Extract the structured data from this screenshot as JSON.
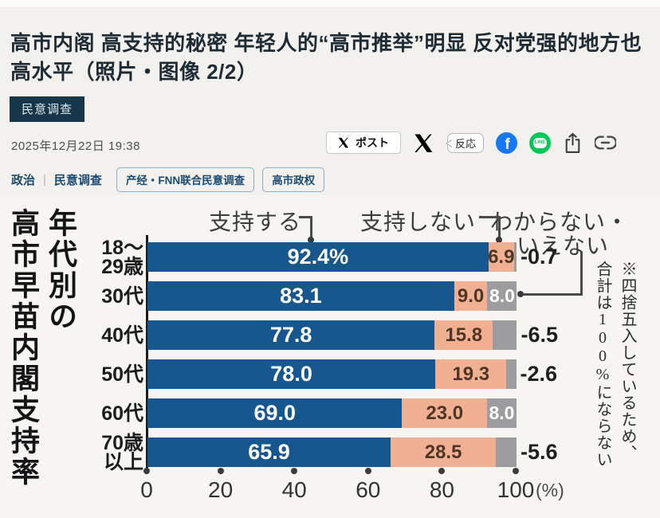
{
  "header": {
    "title_line1": "高市内阁 高支持的秘密 年轻人的“高市推举”明显 反对党强的地方也",
    "title_line2": "高水平（照片・图像 2/2）",
    "category_badge": "民意调查",
    "date": "2025年12月22日 19:38"
  },
  "social": {
    "post_label": "ポスト",
    "reaction_label": "反応",
    "facebook_letter": "f",
    "line_text": "LINE"
  },
  "tags": {
    "links": [
      "政治",
      "民意调查"
    ],
    "separator": "|",
    "chips": [
      "产经・FNN联合民意调查",
      "高市政权"
    ]
  },
  "chart_data": {
    "type": "bar",
    "orientation": "horizontal-stacked",
    "title": "年代別の高市早苗内閣支持率",
    "title_display": "年代別の\n高市早苗内閣支持率",
    "legend": [
      "支持する",
      "支持しない",
      "わからない・いえない"
    ],
    "legend_display": [
      "支持する",
      "支持しない",
      "わからない・",
      "いえない"
    ],
    "categories": [
      "18〜29歳",
      "30代",
      "40代",
      "50代",
      "60代",
      "70歳以上"
    ],
    "category_display": [
      "18〜\n29歳",
      "30代",
      "40代",
      "50代",
      "60代",
      "70歳\n以上"
    ],
    "series": [
      {
        "name": "支持する",
        "color": "#15578e",
        "values": [
          92.4,
          83.1,
          77.8,
          78.0,
          69.0,
          65.9
        ]
      },
      {
        "name": "支持しない",
        "color": "#f2b092",
        "values": [
          6.9,
          9.0,
          15.8,
          19.3,
          23.0,
          28.5
        ]
      },
      {
        "name": "わからない・いえない",
        "color": "#9d9da0",
        "values": [
          0.7,
          8.0,
          6.5,
          2.6,
          8.0,
          5.6
        ]
      }
    ],
    "value_labels": {
      "support": [
        "92.4%",
        "83.1",
        "77.8",
        "78.0",
        "69.0",
        "65.9"
      ],
      "oppose": [
        "6.9",
        "9.0",
        "15.8",
        "19.3",
        "23.0",
        "28.5"
      ],
      "unknown_inside": [
        null,
        "8.0",
        null,
        null,
        "8.0",
        null
      ],
      "unknown_outside": [
        "-0.7",
        null,
        "-6.5",
        "-2.6",
        null,
        "-5.6"
      ]
    },
    "x_ticks": [
      "0",
      "20",
      "40",
      "60",
      "80",
      "100"
    ],
    "x_unit": "(%)",
    "xlim": [
      0,
      100
    ],
    "grid": false,
    "note": "※四捨五入しているため、合計は100%にならない",
    "note_display": "※四捨五入しているため、\n合計は100%にならない"
  }
}
